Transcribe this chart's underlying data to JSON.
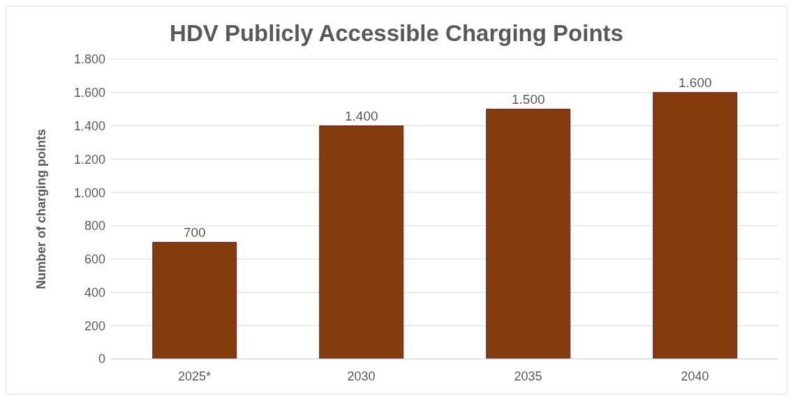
{
  "chart_data": {
    "type": "bar",
    "title": "HDV Publicly Accessible Charging Points",
    "ylabel": "Number of charging points",
    "categories": [
      "2025*",
      "2030",
      "2035",
      "2040"
    ],
    "values": [
      700,
      1400,
      1500,
      1600
    ],
    "value_labels": [
      "700",
      "1.400",
      "1.500",
      "1.600"
    ],
    "color": "#843c0c",
    "ylim": [
      0,
      1800
    ],
    "yticks": [
      {
        "value": 0,
        "label": "0"
      },
      {
        "value": 200,
        "label": "200"
      },
      {
        "value": 400,
        "label": "400"
      },
      {
        "value": 600,
        "label": "600"
      },
      {
        "value": 800,
        "label": "800"
      },
      {
        "value": 1000,
        "label": "1.000"
      },
      {
        "value": 1200,
        "label": "1.200"
      },
      {
        "value": 1400,
        "label": "1.400"
      },
      {
        "value": 1600,
        "label": "1.600"
      },
      {
        "value": 1800,
        "label": "1.800"
      }
    ],
    "grid": "y",
    "legend": false
  }
}
